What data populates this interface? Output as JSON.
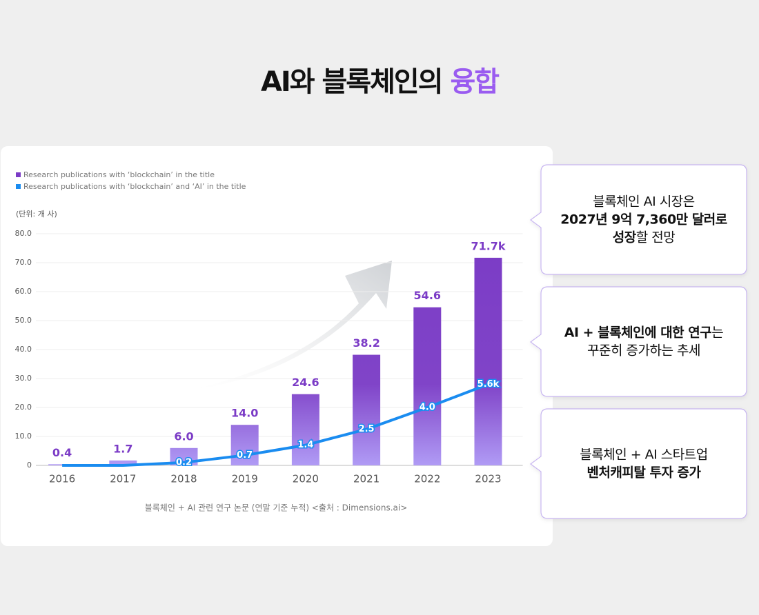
{
  "title": {
    "main": "AI와 블록체인의",
    "accent": "융합"
  },
  "chart_data": {
    "type": "bar",
    "unit_label": "(단위: 개 사)",
    "caption": "블록체인 + AI 관련 연구 논문 (연말 기준 누적) <출처 : Dimensions.ai>",
    "categories": [
      "2016",
      "2017",
      "2018",
      "2019",
      "2020",
      "2021",
      "2022",
      "2023"
    ],
    "series": [
      {
        "name": "Research publications with ‘blockchain’ in the title",
        "type": "bar",
        "color": "#7b3bc6",
        "values": [
          0.4,
          1.7,
          6.0,
          14.0,
          24.6,
          38.2,
          54.6,
          71.7
        ],
        "value_labels": [
          "0.4",
          "1.7",
          "6.0",
          "14.0",
          "24.6",
          "38.2",
          "54.6",
          "71.7k"
        ]
      },
      {
        "name": "Research publications with ‘blockchain’ and ‘AI’ in the title",
        "type": "line",
        "color": "#1a8cf0",
        "axis": "y2",
        "values": [
          0,
          0,
          0.2,
          0.7,
          1.4,
          2.5,
          4.0,
          5.6
        ],
        "value_labels": [
          null,
          null,
          "0.2",
          "0.7",
          "1.4",
          "2.5",
          "4.0",
          "5.6k"
        ]
      }
    ],
    "ylim": [
      0,
      80
    ],
    "yticks": [
      0,
      {
        "value": 10,
        "label": "10.0"
      },
      {
        "value": 20,
        "label": "20.0"
      },
      {
        "value": 30,
        "label": "30.0"
      },
      {
        "value": 40,
        "label": "40.0"
      },
      {
        "value": 50,
        "label": "50.0"
      },
      {
        "value": 60,
        "label": "60.0"
      },
      {
        "value": 70,
        "label": "70.0"
      },
      {
        "value": 80,
        "label": "80.0"
      }
    ],
    "y2lim": [
      0,
      16
    ],
    "grid": true
  },
  "callouts": [
    {
      "lines": [
        [
          {
            "text": "블록체인 AI 시장은",
            "bold": false
          }
        ],
        [
          {
            "text": "2027년 9억 7,360만 달러로",
            "bold": true
          }
        ],
        [
          {
            "text": "성장",
            "bold": true
          },
          {
            "text": "할 전망",
            "bold": false
          }
        ]
      ]
    },
    {
      "lines": [
        [
          {
            "text": "AI + 블록체인에 대한 연구",
            "bold": true
          },
          {
            "text": "는",
            "bold": false
          }
        ],
        [
          {
            "text": "꾸준히 증가하는 추세",
            "bold": false
          }
        ]
      ]
    },
    {
      "lines": [
        [
          {
            "text": "블록체인 + AI 스타트업",
            "bold": false
          }
        ],
        [
          {
            "text": "벤처캐피탈 투자 증가",
            "bold": true
          }
        ]
      ]
    }
  ]
}
